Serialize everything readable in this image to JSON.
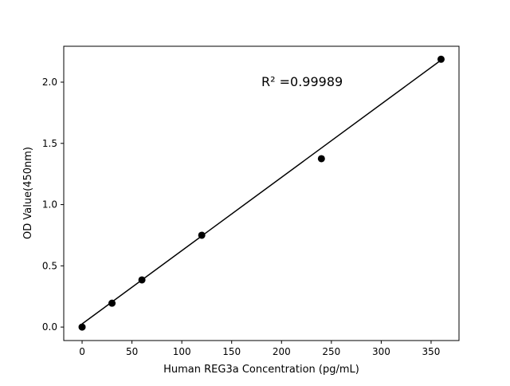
{
  "chart_data": {
    "type": "scatter",
    "title": "",
    "xlabel": "Human REG3a Concentration (pg/mL)",
    "ylabel": "OD Value(450nm)",
    "annotation": "R² =0.99989",
    "xlim": [
      -18.4,
      378
    ],
    "ylim": [
      -0.11,
      2.293
    ],
    "x_ticks": [
      0,
      50,
      100,
      150,
      200,
      250,
      300,
      350
    ],
    "y_ticks": [
      0.0,
      0.5,
      1.0,
      1.5,
      2.0
    ],
    "y_tick_labels": [
      "0.0",
      "0.5",
      "1.0",
      "1.5",
      "2.0"
    ],
    "grid": false,
    "series": [
      {
        "x": [
          0,
          30,
          60,
          120,
          240,
          360
        ],
        "y": [
          0.0,
          0.195,
          0.385,
          0.75,
          1.375,
          2.187
        ],
        "marker": "circle",
        "color": "#000000"
      }
    ],
    "fit_line": {
      "x": [
        0,
        360
      ],
      "y": [
        0.026,
        2.18
      ],
      "color": "#000000"
    }
  }
}
